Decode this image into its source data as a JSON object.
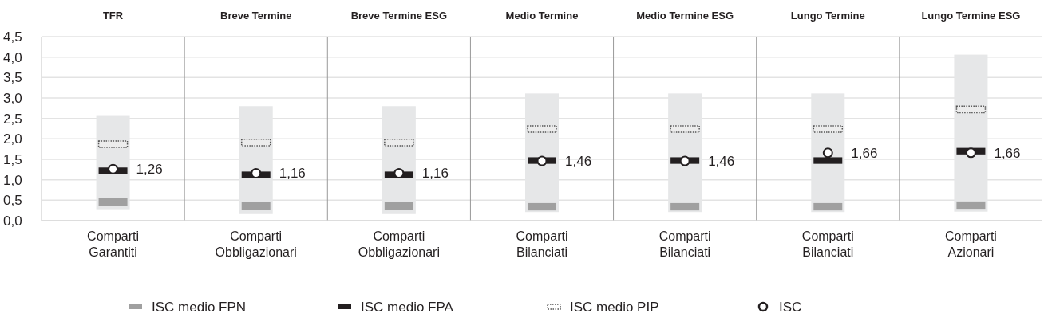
{
  "chart_data": {
    "type": "bar",
    "categories": [
      "Comparti\nGarantiti",
      "Comparti\nObbligazionari",
      "Comparti\nObbligazionari",
      "Comparti\nBilanciati",
      "Comparti\nBilanciati",
      "Comparti\nBilanciati",
      "Comparti\nAzionari"
    ],
    "annotations": [
      "TFR",
      "Breve Termine",
      "Breve Termine ESG",
      "Medio Termine",
      "Medio Termine ESG",
      "Lungo Termine",
      "Lungo Termine ESG"
    ],
    "ylim": [
      0,
      4.5
    ],
    "yticks": [
      {
        "value": 0,
        "label": "0,0"
      },
      {
        "value": 0.5,
        "label": "0,5"
      },
      {
        "value": 1,
        "label": "1,0"
      },
      {
        "value": 1.5,
        "label": "1,5"
      },
      {
        "value": 2,
        "label": "2,0"
      },
      {
        "value": 2.5,
        "label": "2,5"
      },
      {
        "value": 3,
        "label": "3,0"
      },
      {
        "value": 3.5,
        "label": "3,5"
      },
      {
        "value": 4,
        "label": "4,0"
      },
      {
        "value": 4.5,
        "label": "4,5"
      }
    ],
    "grid": "y",
    "legend": "bottom",
    "series": [
      {
        "color": "#e6e7e8",
        "base": [
          0.28,
          0.18,
          0.18,
          0.21,
          0.21,
          0.21,
          0.22
        ],
        "values": [
          2.3,
          2.62,
          2.62,
          2.9,
          2.9,
          2.9,
          3.84
        ]
      },
      {
        "name": "ISC medio FPN",
        "color": "#a0a0a0",
        "base": [
          0.37,
          0.27,
          0.27,
          0.25,
          0.25,
          0.25,
          0.29
        ],
        "values": [
          0.18,
          0.18,
          0.18,
          0.18,
          0.18,
          0.18,
          0.18
        ]
      },
      {
        "name": "ISC medio FPA",
        "color": "#231f20",
        "base": [
          1.14,
          1.04,
          1.04,
          1.39,
          1.39,
          1.39,
          1.62
        ],
        "values": [
          0.16,
          0.16,
          0.16,
          0.16,
          0.16,
          0.16,
          0.16
        ]
      },
      {
        "name": "ISC medio PIP",
        "color": "#555555",
        "line_style": "dotted",
        "base": [
          1.79,
          1.83,
          1.83,
          2.16,
          2.16,
          2.16,
          2.64
        ],
        "values": [
          0.16,
          0.16,
          0.16,
          0.16,
          0.16,
          0.16,
          0.16
        ]
      },
      {
        "type": "scatter",
        "name": "ISC",
        "color": "#231f20",
        "marker": "circle",
        "values": [
          1.26,
          1.16,
          1.16,
          1.46,
          1.46,
          1.66,
          1.66
        ],
        "value_labels": [
          "1,26",
          "1,16",
          "1,16",
          "1,46",
          "1,46",
          "1,66",
          "1,66"
        ]
      }
    ]
  }
}
